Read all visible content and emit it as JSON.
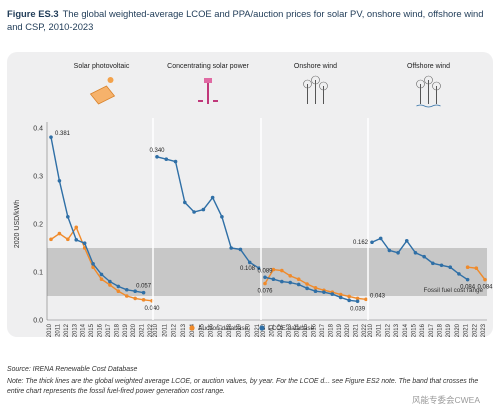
{
  "caption": {
    "figure_label": "Figure ES.3",
    "text": "The global weighted-average LCOE and PPA/auction prices for solar PV, onshore wind, offshore wind and CSP, 2010-2023"
  },
  "source": "Source: IRENA Renewable Cost Database",
  "note": "Note: The thick lines are the global weighted average LCOE, or auction values, by year. For the LCOE d... see Figure ES2 note. The band that crosses the entire chart represents the fossil fuel-fired power generation cost range.",
  "watermark": "风能专委会CWEA",
  "chart_data": {
    "type": "line",
    "ylabel": "2020 USD/kWh",
    "ylim": [
      0,
      0.4
    ],
    "yticks": [
      "0.0",
      "0.1",
      "0.2",
      "0.3",
      "0.4"
    ],
    "band": {
      "range": [
        0.05,
        0.15
      ],
      "label": "Fossil fuel cost range"
    },
    "legend": {
      "position": "bottom-center",
      "items": [
        {
          "name": "Auction database",
          "color": "#f08a2a"
        },
        {
          "name": "LCOE database",
          "color": "#2f6fa6"
        }
      ]
    },
    "colors": {
      "auction": "#f08a2a",
      "lcoe": "#2f6fa6",
      "band": "#bfbfbf"
    },
    "panels": [
      {
        "title": "Solar photovoltaic",
        "icon": "solar-panel-icon",
        "x": [
          "2010",
          "2011",
          "2012",
          "2013",
          "2014",
          "2015",
          "2016",
          "2017",
          "2018",
          "2019",
          "2020",
          "2021",
          "2022"
        ],
        "lcoe": [
          0.381,
          0.29,
          0.215,
          0.167,
          0.16,
          0.117,
          0.095,
          0.08,
          0.07,
          0.063,
          0.06,
          0.057,
          null
        ],
        "auction": [
          0.168,
          0.18,
          0.168,
          0.193,
          0.15,
          0.11,
          0.085,
          0.073,
          0.06,
          0.05,
          0.045,
          0.042,
          0.04
        ],
        "labels": [
          {
            "text": "0.381",
            "i": 0,
            "series": "lcoe",
            "pos": "right"
          },
          {
            "text": "0.057",
            "i": 11,
            "series": "lcoe",
            "pos": "above"
          },
          {
            "text": "0.040",
            "i": 12,
            "series": "auction",
            "pos": "below"
          }
        ]
      },
      {
        "title": "Concentrating solar power",
        "icon": "csp-tower-icon",
        "x": [
          "2010",
          "2011",
          "2012",
          "2013",
          "2014",
          "2015",
          "2016",
          "2017",
          "2018",
          "2019",
          "2020",
          "2021"
        ],
        "lcoe": [
          0.34,
          0.335,
          0.33,
          0.245,
          0.225,
          0.23,
          0.255,
          0.215,
          0.15,
          0.147,
          0.12,
          0.108
        ],
        "auction": [],
        "labels": [
          {
            "text": "0.340",
            "i": 0,
            "series": "lcoe",
            "pos": "above"
          },
          {
            "text": "0.108",
            "i": 11,
            "series": "lcoe",
            "pos": "left"
          }
        ]
      },
      {
        "title": "Onshore wind",
        "icon": "wind-turbine-icon",
        "x": [
          "2010",
          "2011",
          "2012",
          "2013",
          "2014",
          "2015",
          "2016",
          "2017",
          "2018",
          "2019",
          "2020",
          "2021",
          "2022"
        ],
        "lcoe": [
          0.089,
          0.085,
          0.08,
          0.078,
          0.074,
          0.066,
          0.06,
          0.058,
          0.054,
          0.047,
          0.041,
          0.039,
          null
        ],
        "auction": [
          0.076,
          0.105,
          0.103,
          0.092,
          0.085,
          0.075,
          0.067,
          0.062,
          0.058,
          0.053,
          0.049,
          0.045,
          0.043
        ],
        "labels": [
          {
            "text": "0.089",
            "i": 0,
            "series": "lcoe",
            "pos": "above"
          },
          {
            "text": "0.076",
            "i": 0,
            "series": "auction",
            "pos": "below"
          },
          {
            "text": "0.039",
            "i": 11,
            "series": "lcoe",
            "pos": "below"
          },
          {
            "text": "0.043",
            "i": 12,
            "series": "auction",
            "pos": "right"
          }
        ]
      },
      {
        "title": "Offshore wind",
        "icon": "offshore-wind-icon",
        "x": [
          "2010",
          "2011",
          "2012",
          "2013",
          "2014",
          "2015",
          "2016",
          "2017",
          "2018",
          "2019",
          "2020",
          "2021",
          "2022",
          "2023"
        ],
        "lcoe": [
          0.162,
          0.17,
          0.145,
          0.14,
          0.165,
          0.14,
          0.132,
          0.118,
          0.114,
          0.11,
          0.096,
          0.084,
          null,
          null
        ],
        "auction": [
          null,
          null,
          null,
          null,
          null,
          null,
          null,
          null,
          null,
          null,
          null,
          0.11,
          0.108,
          0.084
        ],
        "labels": [
          {
            "text": "0.162",
            "i": 0,
            "series": "lcoe",
            "pos": "left"
          },
          {
            "text": "0.084",
            "i": 11,
            "series": "lcoe",
            "pos": "below"
          },
          {
            "text": "0.084",
            "i": 13,
            "series": "auction",
            "pos": "below"
          }
        ]
      }
    ]
  }
}
